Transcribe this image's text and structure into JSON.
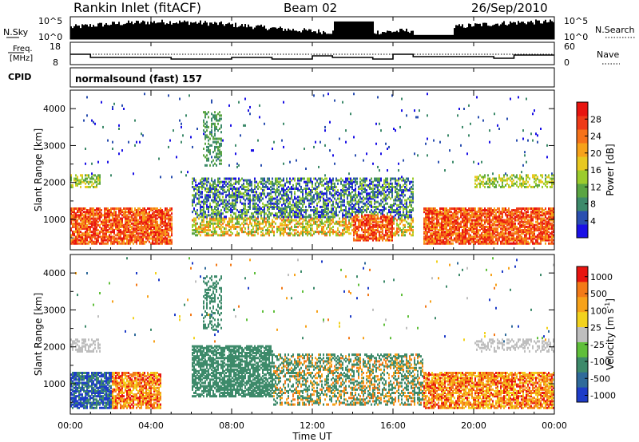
{
  "header": {
    "station": "Rankin Inlet (fitACF)",
    "beam": "Beam 02",
    "date": "26/Sep/2010"
  },
  "noise_panel": {
    "left_label": "N.Sky",
    "left_ticks": [
      "10^5",
      "10^0"
    ],
    "right_ticks": [
      "10^5",
      "10^0"
    ],
    "right_label": "N.Search"
  },
  "freq_panel": {
    "left_label_1": "Freq.",
    "left_label_2": "[MHz]",
    "left_ticks": [
      "18",
      "8"
    ],
    "right_ticks": [
      "60",
      "0"
    ],
    "right_label": "Nave"
  },
  "cpid": {
    "label": "CPID",
    "value": "normalsound (fast) 157"
  },
  "chart_data": [
    {
      "type": "heatmap",
      "name": "power",
      "ylabel": "Slant Range [km]",
      "yticks": [
        "1000",
        "2000",
        "3000",
        "4000"
      ],
      "yvalues": [
        1000,
        2000,
        3000,
        4000
      ],
      "ylim": [
        180,
        4500
      ],
      "xlim": [
        0,
        24
      ],
      "colorbar": {
        "label": "Power [dB]",
        "ticks": [
          "4",
          "8",
          "12",
          "16",
          "20",
          "24",
          "28"
        ],
        "colors": [
          "#1a10e6",
          "#2a4fb0",
          "#3d8a6a",
          "#5aa542",
          "#9ccc2c",
          "#e8c820",
          "#f7a21a",
          "#f6721a",
          "#ef3a18",
          "#e8140f"
        ]
      }
    },
    {
      "type": "heatmap",
      "name": "velocity",
      "ylabel": "Slant Range [km]",
      "yticks": [
        "1000",
        "2000",
        "3000",
        "4000"
      ],
      "yvalues": [
        1000,
        2000,
        3000,
        4000
      ],
      "ylim": [
        180,
        4500
      ],
      "xlim": [
        0,
        24
      ],
      "colorbar": {
        "label": "Velocity [m s^-1]",
        "ticks": [
          "1000",
          "500",
          "100",
          "25",
          "-25",
          "-100",
          "-500",
          "-1000"
        ],
        "colors": [
          "#1e3cc8",
          "#2f6a9a",
          "#3d8a6a",
          "#5fbf3a",
          "#bebebe",
          "#f2d21e",
          "#f7a21a",
          "#f37a18",
          "#e81410"
        ]
      }
    }
  ],
  "time_axis": {
    "xlabel": "Time UT",
    "ticks": [
      "00:00",
      "04:00",
      "08:00",
      "12:00",
      "16:00",
      "20:00",
      "00:00"
    ],
    "tick_hours": [
      0,
      4,
      8,
      12,
      16,
      20,
      24
    ]
  }
}
